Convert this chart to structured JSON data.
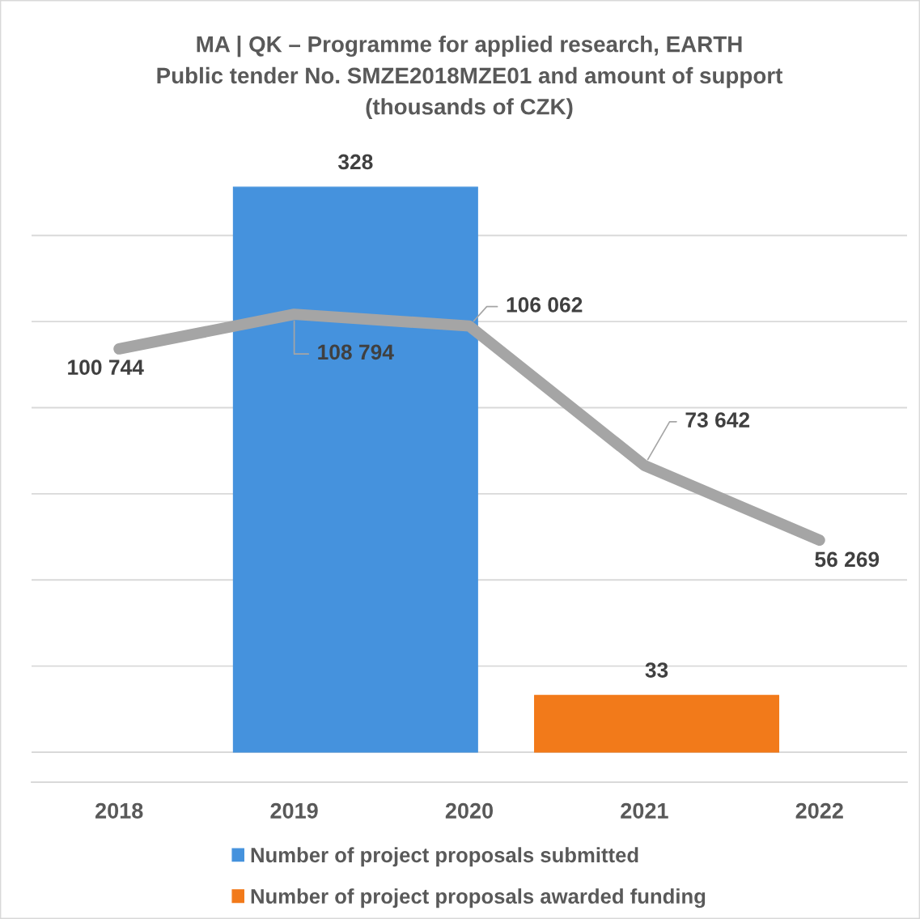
{
  "chart_data": {
    "type": "bar",
    "title": "MA | QK – Programme for applied research, EARTH\nPublic tender No. SMZE2018MZE01 and amount of support\n(thousands of CZK)",
    "xlim": [
      2017.5,
      2022.5
    ],
    "xticks": [
      2018,
      2019,
      2020,
      2021,
      2022
    ],
    "yticks": [
      {
        "value": 0,
        "label": null
      },
      {
        "value": 50,
        "label": null
      },
      {
        "value": 100,
        "label": null
      },
      {
        "value": 150,
        "label": null
      },
      {
        "value": 200,
        "label": null
      },
      {
        "value": 250,
        "label": null
      },
      {
        "value": 300,
        "label": null
      }
    ],
    "series": [
      {
        "name": "Number of project proposals submitted",
        "color": "#4592dd",
        "x": [
          2019.35
        ],
        "values": [
          328
        ]
      },
      {
        "name": "Number of project proposals awarded funding",
        "color": "#f27a1a",
        "x": [
          2021.07
        ],
        "values": [
          33
        ]
      },
      {
        "type": "line",
        "axis": "y2",
        "color": "#a5a5a5",
        "x": [
          2018,
          2019,
          2020,
          2021,
          2022
        ],
        "values": [
          100744,
          108794,
          106062,
          73642,
          56269
        ],
        "value_labels": [
          "100 744",
          "108 794",
          "106 062",
          "73 642",
          "56 269"
        ]
      }
    ],
    "data_labels": true,
    "grid": "y",
    "legend": "bottom",
    "tick_labels": "x"
  }
}
